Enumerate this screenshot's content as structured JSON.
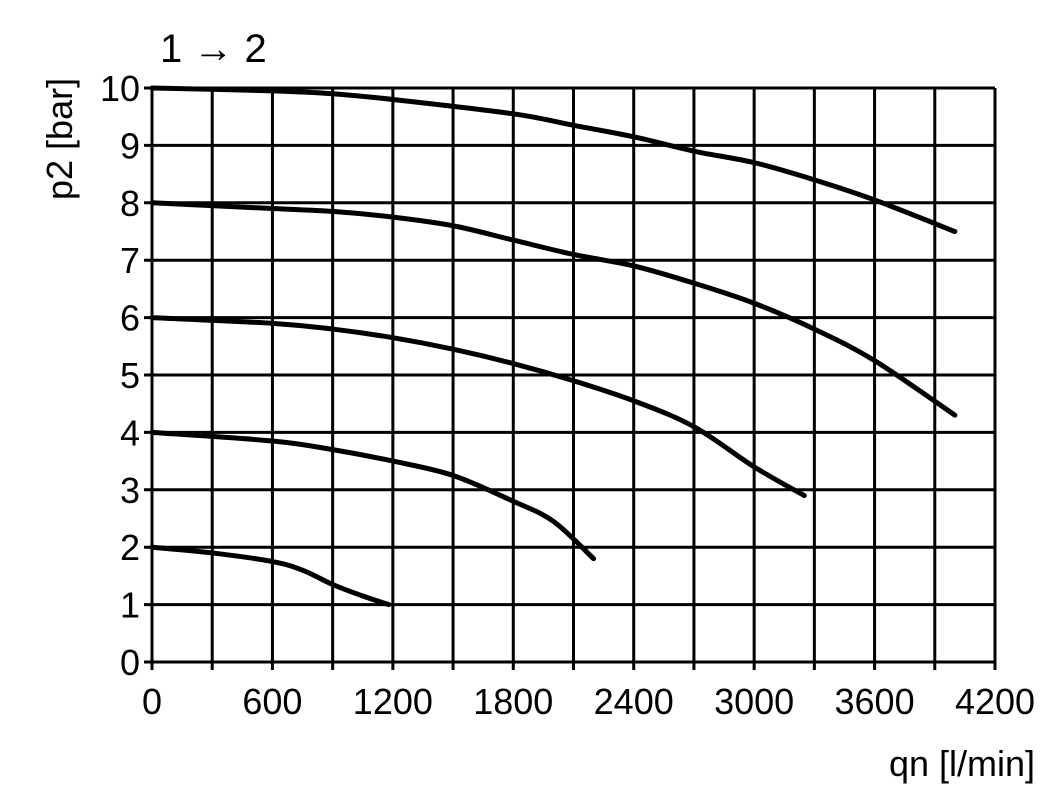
{
  "chart_data": {
    "type": "line",
    "title": "1 → 2",
    "xlabel": "qn [l/min]",
    "ylabel": "p2 [bar]",
    "xlim": [
      0,
      4200
    ],
    "ylim": [
      0,
      10
    ],
    "xticks": [
      0,
      600,
      1200,
      1800,
      2400,
      3000,
      3600,
      4200
    ],
    "yticks": [
      0,
      1,
      2,
      3,
      4,
      5,
      6,
      7,
      8,
      9,
      10
    ],
    "grid": true,
    "x_grid_step": 300,
    "y_grid_step": 1,
    "line_color": "#000000",
    "series": [
      {
        "x": [
          0,
          600,
          900,
          1200,
          1800,
          2100,
          2400,
          2700,
          3000,
          3300,
          3600,
          4000
        ],
        "y": [
          10,
          9.95,
          9.9,
          9.8,
          9.55,
          9.35,
          9.15,
          8.9,
          8.7,
          8.4,
          8.05,
          7.5
        ]
      },
      {
        "x": [
          0,
          600,
          900,
          1200,
          1500,
          1800,
          2100,
          2400,
          2700,
          3000,
          3300,
          3600,
          4000
        ],
        "y": [
          8,
          7.9,
          7.85,
          7.75,
          7.6,
          7.35,
          7.1,
          6.9,
          6.6,
          6.25,
          5.8,
          5.25,
          4.3
        ]
      },
      {
        "x": [
          0,
          600,
          900,
          1200,
          1500,
          1800,
          2100,
          2400,
          2700,
          3000,
          3250
        ],
        "y": [
          6,
          5.9,
          5.8,
          5.65,
          5.45,
          5.2,
          4.9,
          4.55,
          4.1,
          3.4,
          2.9
        ]
      },
      {
        "x": [
          0,
          600,
          900,
          1200,
          1500,
          1800,
          2000,
          2200
        ],
        "y": [
          4,
          3.85,
          3.7,
          3.5,
          3.25,
          2.8,
          2.45,
          1.8
        ]
      },
      {
        "x": [
          0,
          300,
          600,
          750,
          900,
          1050,
          1180
        ],
        "y": [
          2,
          1.9,
          1.75,
          1.6,
          1.35,
          1.15,
          1
        ]
      }
    ]
  }
}
